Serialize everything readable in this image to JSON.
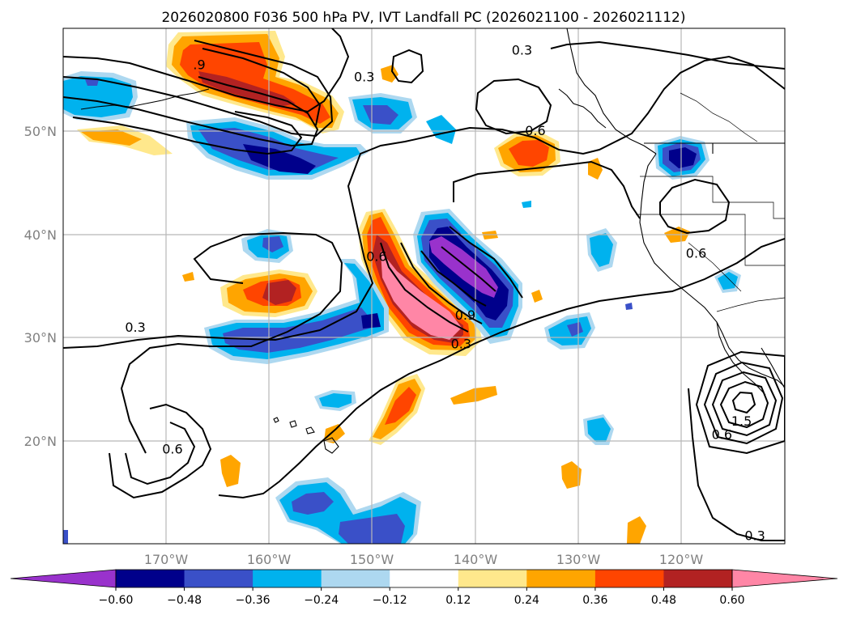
{
  "chart_data": {
    "type": "heatmap",
    "title": "2026020800 F036 500 hPa PV, IVT Landfall PC (2026021100 - 2026021112)",
    "map": {
      "lon_range": [
        -180,
        -110
      ],
      "lat_range": [
        10,
        60
      ],
      "lon_ticks": [
        -170,
        -160,
        -150,
        -140,
        -130,
        -120
      ],
      "lon_tick_labels": [
        "170°W",
        "160°W",
        "150°W",
        "140°W",
        "130°W",
        "120°W"
      ],
      "lat_ticks": [
        20,
        30,
        40,
        50
      ],
      "lat_tick_labels": [
        "20°N",
        "30°N",
        "40°N",
        "50°N"
      ],
      "grid": true
    },
    "colorbar": {
      "orientation": "horizontal",
      "extend": "both",
      "levels": [
        -0.72,
        -0.6,
        -0.48,
        -0.36,
        -0.24,
        -0.12,
        0.12,
        0.24,
        0.36,
        0.48,
        0.6,
        0.72
      ],
      "tick_labels": [
        "−0.60",
        "−0.48",
        "−0.36",
        "−0.24",
        "−0.12",
        "0.12",
        "0.24",
        "0.36",
        "0.48",
        "0.60"
      ],
      "colors": [
        "#9932cc",
        "#00008b",
        "#3a50c8",
        "#00b2ee",
        "#add8f0",
        "#ffffff",
        "#ffe88c",
        "#ffa500",
        "#ff4500",
        "#b22222",
        "#ff86a6"
      ]
    },
    "contour_labels": [
      {
        "text": "0.3",
        "lon": -135.5,
        "lat": 57.8
      },
      {
        "text": "0.3",
        "lon": -150.8,
        "lat": 55.2
      },
      {
        "text": ".9",
        "lon": -166.8,
        "lat": 56.4
      },
      {
        "text": "0.6",
        "lon": -134.2,
        "lat": 50.0
      },
      {
        "text": "0.6",
        "lon": -118.6,
        "lat": 38.1
      },
      {
        "text": "0.6",
        "lon": -149.6,
        "lat": 37.8
      },
      {
        "text": "0.9",
        "lon": -141.0,
        "lat": 32.1
      },
      {
        "text": "0.3",
        "lon": -141.4,
        "lat": 29.3
      },
      {
        "text": "0.3",
        "lon": -173.0,
        "lat": 30.9
      },
      {
        "text": "0.6",
        "lon": -169.4,
        "lat": 19.1
      },
      {
        "text": "1.5",
        "lon": -114.2,
        "lat": 21.8
      },
      {
        "text": "0.6",
        "lon": -116.1,
        "lat": 20.5
      },
      {
        "text": "0.3",
        "lon": -112.9,
        "lat": 10.7
      }
    ]
  }
}
